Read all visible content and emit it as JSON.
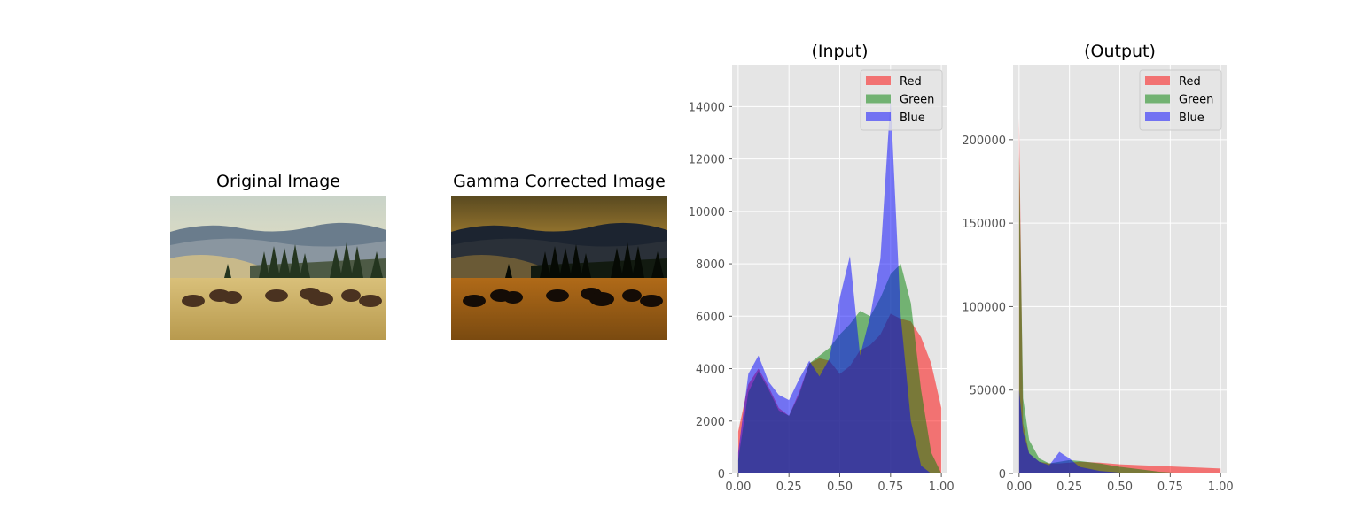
{
  "images": [
    {
      "title": "Original Image",
      "description_icon": "landscape-photo"
    },
    {
      "title": "Gamma Corrected Image",
      "description_icon": "landscape-photo-dark"
    }
  ],
  "colors": {
    "red": "#ff0000",
    "green": "#008000",
    "blue": "#0000ff",
    "axes_bg": "#e5e5e5",
    "grid": "#ffffff"
  },
  "chart_data": [
    {
      "type": "bar",
      "title": "(Input)",
      "xlabel": "",
      "ylabel": "",
      "xlim": [
        -0.03,
        1.03
      ],
      "ylim": [
        0,
        15600
      ],
      "xticks": [
        0.0,
        0.25,
        0.5,
        0.75,
        1.0
      ],
      "xtick_labels": [
        "0.00",
        "0.25",
        "0.50",
        "0.75",
        "1.00"
      ],
      "yticks": [
        0,
        2000,
        4000,
        6000,
        8000,
        10000,
        12000,
        14000
      ],
      "ytick_labels": [
        "0",
        "2000",
        "4000",
        "6000",
        "8000",
        "10000",
        "12000",
        "14000"
      ],
      "grid": true,
      "legend": "top-right",
      "x": [
        0.0,
        0.05,
        0.1,
        0.15,
        0.2,
        0.25,
        0.3,
        0.35,
        0.4,
        0.45,
        0.5,
        0.55,
        0.6,
        0.65,
        0.7,
        0.75,
        0.8,
        0.85,
        0.9,
        0.95,
        1.0
      ],
      "series": [
        {
          "name": "Red",
          "color": "#ff0000",
          "values": [
            1600,
            3400,
            4000,
            3300,
            2500,
            2200,
            3100,
            4200,
            4400,
            4300,
            3800,
            4100,
            4700,
            4900,
            5300,
            6100,
            5900,
            5800,
            5200,
            4200,
            2500
          ]
        },
        {
          "name": "Green",
          "color": "#008000",
          "values": [
            500,
            3100,
            3900,
            3200,
            2400,
            2200,
            3000,
            4200,
            4500,
            4800,
            5300,
            5700,
            6200,
            6000,
            6700,
            7600,
            8000,
            6500,
            3200,
            800,
            0
          ]
        },
        {
          "name": "Blue",
          "color": "#0000ff",
          "values": [
            800,
            3800,
            4500,
            3500,
            3000,
            2800,
            3600,
            4300,
            3700,
            4400,
            6700,
            8300,
            4500,
            6000,
            8200,
            14300,
            6000,
            2000,
            300,
            0,
            0
          ]
        }
      ]
    },
    {
      "type": "bar",
      "title": "(Output)",
      "xlabel": "",
      "ylabel": "",
      "xlim": [
        -0.03,
        1.03
      ],
      "ylim": [
        0,
        245000
      ],
      "xticks": [
        0.0,
        0.25,
        0.5,
        0.75,
        1.0
      ],
      "xtick_labels": [
        "0.00",
        "0.25",
        "0.50",
        "0.75",
        "1.00"
      ],
      "yticks": [
        0,
        50000,
        100000,
        150000,
        200000
      ],
      "ytick_labels": [
        "0",
        "50000",
        "100000",
        "150000",
        "200000"
      ],
      "grid": true,
      "legend": "top-right",
      "x": [
        0.0,
        0.02,
        0.05,
        0.1,
        0.15,
        0.2,
        0.25,
        0.3,
        0.4,
        0.5,
        0.6,
        0.7,
        0.8,
        0.9,
        1.0
      ],
      "series": [
        {
          "name": "Red",
          "color": "#ff0000",
          "values": [
            213000,
            30000,
            12000,
            7000,
            6000,
            6000,
            6500,
            7000,
            6500,
            5500,
            5000,
            4500,
            4000,
            3500,
            3000
          ]
        },
        {
          "name": "Green",
          "color": "#008000",
          "values": [
            192000,
            45000,
            20000,
            9000,
            6000,
            7000,
            8000,
            7500,
            6000,
            4000,
            2500,
            1000,
            300,
            0,
            0
          ]
        },
        {
          "name": "Blue",
          "color": "#0000ff",
          "values": [
            50000,
            25000,
            12000,
            7000,
            5000,
            13000,
            9000,
            4000,
            1500,
            500,
            100,
            0,
            0,
            0,
            0
          ]
        }
      ]
    }
  ]
}
